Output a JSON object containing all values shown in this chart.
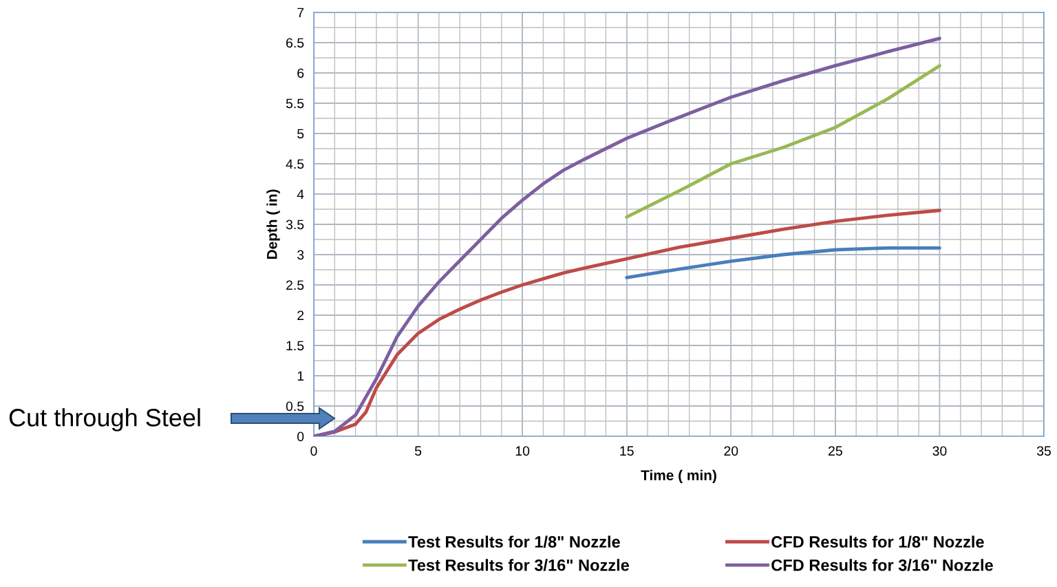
{
  "chart_data": {
    "type": "line",
    "xlabel": "Time ( min)",
    "ylabel": "Depth ( in)",
    "xlim": [
      0,
      35
    ],
    "xticks": [
      0,
      5,
      10,
      15,
      20,
      25,
      30,
      35
    ],
    "ylim": [
      0,
      7
    ],
    "yticks": [
      0,
      0.5,
      1,
      1.5,
      2,
      2.5,
      3,
      3.5,
      4,
      4.5,
      5,
      5.5,
      6,
      6.5,
      7
    ],
    "grid": true,
    "legend": "bottom",
    "line_style": "solid",
    "marker": "none",
    "annotations": [
      "Cut through Steel"
    ],
    "series": [
      {
        "name": "Test Results for 1/8\" Nozzle",
        "color": "#4a7ebb",
        "x": [
          15,
          17.5,
          20,
          22.5,
          25,
          27.5,
          30
        ],
        "values": [
          2.62,
          2.76,
          2.89,
          3.0,
          3.08,
          3.11,
          3.11
        ]
      },
      {
        "name": "CFD Results for 1/8\" Nozzle",
        "color": "#be4b48",
        "x": [
          0,
          1,
          2,
          2.5,
          3,
          4,
          5,
          6,
          7,
          8,
          9,
          10,
          11,
          12,
          13,
          15,
          17.5,
          20,
          22.5,
          25,
          27.5,
          30
        ],
        "values": [
          0,
          0.07,
          0.2,
          0.4,
          0.8,
          1.35,
          1.7,
          1.93,
          2.1,
          2.25,
          2.38,
          2.5,
          2.6,
          2.7,
          2.78,
          2.93,
          3.12,
          3.27,
          3.42,
          3.55,
          3.65,
          3.73
        ]
      },
      {
        "name": "Test Results for 3/16\" Nozzle",
        "color": "#98b954",
        "x": [
          15,
          17.5,
          20,
          22.5,
          25,
          27.5,
          30
        ],
        "values": [
          3.62,
          4.05,
          4.5,
          4.77,
          5.1,
          5.57,
          6.12
        ]
      },
      {
        "name": "CFD Results for 3/16\" Nozzle",
        "color": "#7d5fa0",
        "x": [
          0,
          1,
          2,
          3,
          4,
          5,
          6,
          7,
          8,
          9,
          10,
          11,
          12,
          13,
          14,
          15,
          17,
          20,
          22.5,
          25,
          27.5,
          30
        ],
        "values": [
          0,
          0.08,
          0.35,
          0.95,
          1.65,
          2.15,
          2.55,
          2.9,
          3.25,
          3.6,
          3.9,
          4.17,
          4.4,
          4.58,
          4.75,
          4.92,
          5.2,
          5.6,
          5.87,
          6.12,
          6.35,
          6.57
        ]
      }
    ]
  }
}
